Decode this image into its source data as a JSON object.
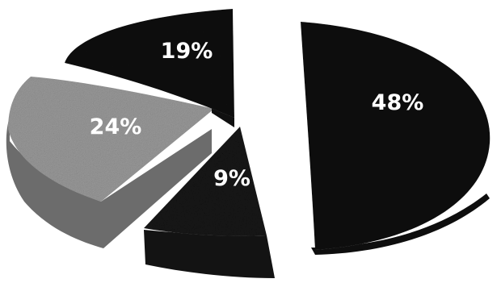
{
  "chart_data": {
    "type": "pie",
    "style": "3d-exploded",
    "title": "",
    "legend": "none",
    "slices": [
      {
        "label": "48%",
        "value": 48,
        "color": "#101010"
      },
      {
        "label": "9%",
        "value": 9,
        "color": "#151515"
      },
      {
        "label": "24%",
        "value": 24,
        "color": "#9a9a9a"
      },
      {
        "label": "19%",
        "value": 19,
        "color": "#121212"
      }
    ],
    "label_colors": [
      "#ffffff",
      "#ffffff",
      "#ffffff",
      "#ffffff"
    ]
  }
}
